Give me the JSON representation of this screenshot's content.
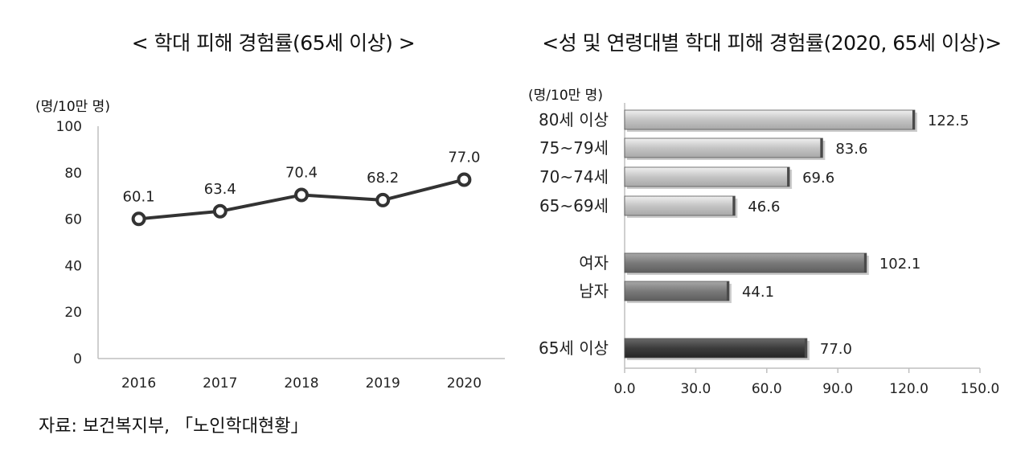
{
  "charts": [
    {
      "title": "< 학대 피해 경험률(65세 이상) >",
      "unit_label": "(명/10만 명)"
    },
    {
      "title": "<성 및 연령대별 학대 피해 경험률(2020, 65세 이상)>",
      "unit_label": "(명/10만 명)"
    }
  ],
  "source": "자료: 보건복지부, 「노인학대현황」",
  "chart_data": [
    {
      "type": "line",
      "title": "< 학대 피해 경험률(65세 이상) >",
      "ylabel": "(명/10만 명)",
      "categories": [
        "2016",
        "2017",
        "2018",
        "2019",
        "2020"
      ],
      "values": [
        60.1,
        63.4,
        70.4,
        68.2,
        77.0
      ],
      "data_labels": [
        "60.1",
        "63.4",
        "70.4",
        "68.2",
        "77.0"
      ],
      "ylim": [
        0,
        100
      ],
      "yticks": [
        "0",
        "20",
        "40",
        "60",
        "80",
        "100"
      ],
      "grid": false,
      "color": "#333333"
    },
    {
      "type": "bar",
      "orientation": "horizontal",
      "title": "<성 및 연령대별 학대 피해 경험률(2020, 65세 이상)>",
      "xlabel": "(명/10만 명)",
      "categories": [
        "80세 이상",
        "75~79세",
        "70~74세",
        "65~69세",
        "여자",
        "남자",
        "65세 이상"
      ],
      "values": [
        122.5,
        83.6,
        69.6,
        46.6,
        102.1,
        44.1,
        77.0
      ],
      "data_labels": [
        "122.5",
        "83.6",
        "69.6",
        "46.6",
        "102.1",
        "44.1",
        "77.0"
      ],
      "groups": [
        "age",
        "age",
        "age",
        "age",
        "sex",
        "sex",
        "total"
      ],
      "group_colors": {
        "age": "#c8c8c8",
        "sex": "#808080",
        "total": "#404040"
      },
      "xlim": [
        0,
        150
      ],
      "xticks": [
        "0.0",
        "30.0",
        "60.0",
        "90.0",
        "120.0",
        "150.0"
      ],
      "grid": false
    }
  ]
}
